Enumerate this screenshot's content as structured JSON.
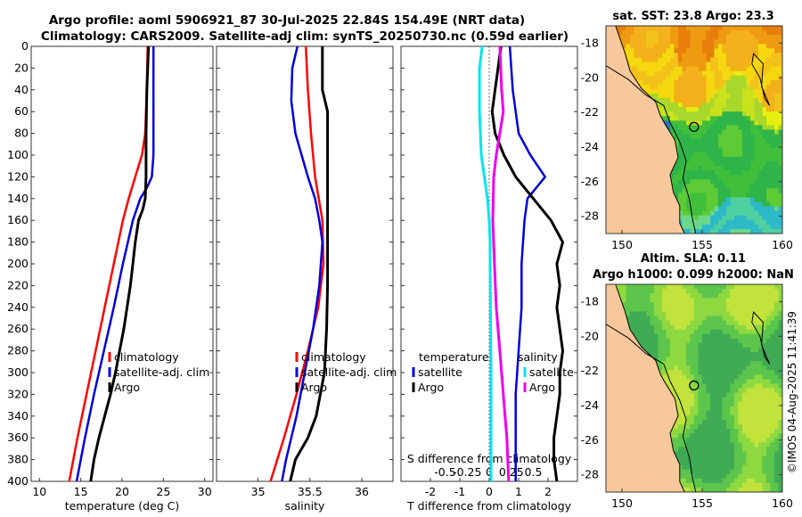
{
  "title": {
    "line1": "Argo profile: aoml 5906921_87 30-Jul-2025 22.84S 154.49E (NRT data)",
    "line2": "Climatology: CARS2009. Satellite-adj clim: synTS_20250730.nc (0.59d earlier)"
  },
  "timestamp": "©IMOS 04-Aug-2025 11:41:39",
  "colors": {
    "climatology": "#ff0000",
    "satellite": "#0000dd",
    "argo": "#000000",
    "sat_salinity": "#00e5ee",
    "argo_salinity": "#ee00ee",
    "land": "#f7c89b"
  },
  "chart_data": [
    {
      "id": "temperature",
      "type": "line",
      "xlabel": "temperature (deg C)",
      "ylabel": "depth",
      "xlim": [
        9,
        31
      ],
      "ylim": [
        400,
        0
      ],
      "xticks": [
        10,
        15,
        20,
        25,
        30
      ],
      "yticks": [
        0,
        20,
        40,
        60,
        80,
        100,
        120,
        140,
        160,
        180,
        200,
        220,
        240,
        260,
        280,
        300,
        320,
        340,
        360,
        380,
        400
      ],
      "legend": {
        "placement": "lower-right",
        "entries": [
          "climatology",
          "satellite-adj. clim",
          "Argo"
        ]
      },
      "series": [
        {
          "name": "climatology",
          "color": "#ff0000",
          "depth": [
            0,
            40,
            80,
            100,
            120,
            140,
            160,
            200,
            240,
            280,
            320,
            360,
            400
          ],
          "values": [
            23.1,
            23.0,
            22.8,
            22.4,
            21.6,
            20.8,
            20.1,
            19.0,
            17.9,
            16.8,
            15.7,
            14.6,
            13.6
          ]
        },
        {
          "name": "satellite-adj. clim",
          "color": "#0000dd",
          "depth": [
            0,
            40,
            80,
            100,
            120,
            130,
            140,
            160,
            200,
            240,
            280,
            320,
            360,
            400
          ],
          "values": [
            23.8,
            23.8,
            23.8,
            23.8,
            23.6,
            23.0,
            22.2,
            21.3,
            20.1,
            19.0,
            17.8,
            16.6,
            15.5,
            14.5
          ]
        },
        {
          "name": "Argo",
          "color": "#000000",
          "depth": [
            0,
            40,
            80,
            120,
            140,
            150,
            160,
            180,
            200,
            220,
            240,
            260,
            280,
            300,
            320,
            340,
            360,
            380,
            400
          ],
          "values": [
            23.2,
            23.0,
            22.9,
            22.9,
            22.8,
            22.5,
            22.0,
            21.6,
            21.3,
            21.0,
            20.6,
            20.2,
            19.7,
            19.2,
            18.6,
            17.9,
            17.2,
            16.6,
            16.2
          ]
        }
      ]
    },
    {
      "id": "salinity",
      "type": "line",
      "xlabel": "salinity",
      "ylabel": "depth",
      "xlim": [
        34.6,
        36.3
      ],
      "ylim": [
        400,
        0
      ],
      "xticks": [
        35,
        35.5,
        36
      ],
      "yticks": [
        0,
        20,
        40,
        60,
        80,
        100,
        120,
        140,
        160,
        180,
        200,
        220,
        240,
        260,
        280,
        300,
        320,
        340,
        360,
        380,
        400
      ],
      "legend": {
        "placement": "lower-right",
        "entries": [
          "climatology",
          "satellite-adj. clim",
          "Argo"
        ]
      },
      "series": [
        {
          "name": "climatology",
          "color": "#ff0000",
          "depth": [
            0,
            40,
            80,
            120,
            160,
            200,
            240,
            280,
            320,
            360,
            400
          ],
          "values": [
            35.46,
            35.48,
            35.51,
            35.55,
            35.62,
            35.63,
            35.58,
            35.48,
            35.37,
            35.25,
            35.12
          ]
        },
        {
          "name": "satellite-adj. clim",
          "color": "#0000dd",
          "depth": [
            0,
            20,
            50,
            80,
            100,
            120,
            140,
            160,
            180,
            220,
            260,
            300,
            340,
            380,
            400
          ],
          "values": [
            35.38,
            35.33,
            35.32,
            35.36,
            35.42,
            35.48,
            35.55,
            35.59,
            35.62,
            35.59,
            35.53,
            35.45,
            35.37,
            35.27,
            35.23
          ]
        },
        {
          "name": "Argo",
          "color": "#000000",
          "depth": [
            0,
            40,
            60,
            100,
            140,
            180,
            220,
            260,
            300,
            340,
            360,
            380,
            400
          ],
          "values": [
            35.62,
            35.62,
            35.67,
            35.67,
            35.67,
            35.67,
            35.67,
            35.66,
            35.64,
            35.56,
            35.48,
            35.36,
            35.31
          ]
        }
      ]
    },
    {
      "id": "differences",
      "type": "line",
      "xlabel": "T difference from climatology",
      "xlabel2": "S difference from climatology",
      "ylabel": "depth",
      "xlim": [
        -3.0,
        3.0
      ],
      "xlim_salinity": [
        -1.0,
        1.0
      ],
      "ylim": [
        400,
        0
      ],
      "xticks": [
        -2,
        -1,
        0,
        1,
        2
      ],
      "xticks_salinity": [
        -0.5,
        -0.25,
        0,
        0.25,
        0.5
      ],
      "xticklabels_salinity": [
        "-0.5",
        "-0.25",
        "0",
        "0.25",
        "0.5"
      ],
      "yticks": [
        0,
        20,
        40,
        60,
        80,
        100,
        120,
        140,
        160,
        180,
        200,
        220,
        240,
        260,
        280,
        300,
        320,
        340,
        360,
        380,
        400
      ],
      "legend": {
        "temperature_title": "temperature",
        "salinity_title": "salinity",
        "temperature_entries": [
          "satellite",
          "Argo"
        ],
        "salinity_entries": [
          "satellite",
          "Argo"
        ]
      },
      "series": [
        {
          "name": "T satellite",
          "color": "#0000dd",
          "depth": [
            0,
            40,
            80,
            100,
            120,
            140,
            160,
            200,
            240,
            280,
            320,
            360,
            400
          ],
          "values": [
            0.7,
            0.8,
            1.0,
            1.4,
            1.9,
            1.3,
            1.2,
            1.1,
            1.1,
            1.0,
            0.9,
            0.9,
            0.9
          ]
        },
        {
          "name": "T Argo",
          "color": "#000000",
          "depth": [
            0,
            20,
            40,
            60,
            80,
            100,
            120,
            140,
            160,
            170,
            180,
            200,
            220,
            240,
            260,
            280,
            300,
            320,
            340,
            360,
            380,
            400
          ],
          "values": [
            0.4,
            0.3,
            0.2,
            0.1,
            0.2,
            0.5,
            0.9,
            1.5,
            2.1,
            2.3,
            2.5,
            2.3,
            2.4,
            2.3,
            2.4,
            2.5,
            2.4,
            2.4,
            2.3,
            2.2,
            2.2,
            2.3
          ]
        },
        {
          "name": "S satellite",
          "color": "#00e5ee",
          "depth": [
            0,
            20,
            60,
            100,
            140,
            160,
            180,
            200,
            300,
            400
          ],
          "values": [
            -0.08,
            -0.11,
            -0.11,
            -0.09,
            -0.02,
            0.0,
            0.01,
            0.01,
            0.02,
            0.02
          ]
        },
        {
          "name": "S Argo",
          "color": "#ee00ee",
          "depth": [
            0,
            40,
            60,
            80,
            100,
            120,
            160,
            200,
            240,
            280,
            320,
            360,
            400
          ],
          "values": [
            0.12,
            0.14,
            0.16,
            0.12,
            0.08,
            0.05,
            0.04,
            0.06,
            0.08,
            0.12,
            0.16,
            0.2,
            0.22
          ]
        }
      ]
    },
    {
      "id": "sst_map",
      "type": "heatmap",
      "title": "sat. SST: 23.8 Argo: 23.3",
      "xlim": [
        149,
        160
      ],
      "ylim": [
        -29,
        -17
      ],
      "xticks": [
        150,
        155,
        160
      ],
      "yticks": [
        -18,
        -20,
        -22,
        -24,
        -26,
        -28
      ],
      "profile_location": [
        154.49,
        -22.84
      ]
    },
    {
      "id": "sla_map",
      "type": "heatmap",
      "title_line1": "Altim. SLA: 0.11",
      "title_line2": "Argo h1000: 0.099 h2000: NaN",
      "xlim": [
        149,
        160
      ],
      "ylim": [
        -29,
        -17
      ],
      "xticks": [
        150,
        155,
        160
      ],
      "yticks": [
        -18,
        -20,
        -22,
        -24,
        -26,
        -28
      ],
      "profile_location": [
        154.49,
        -22.84
      ]
    }
  ]
}
